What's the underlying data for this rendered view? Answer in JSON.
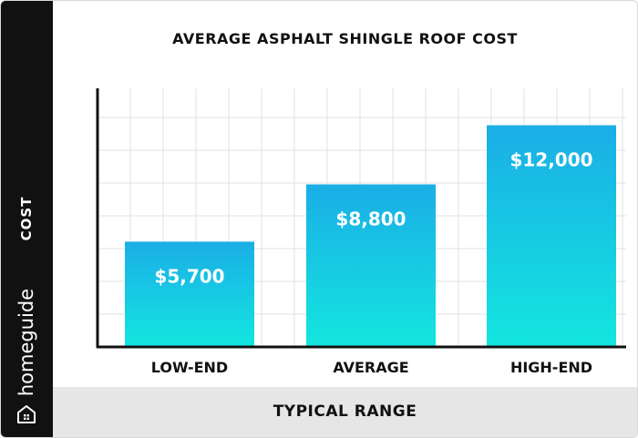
{
  "brand": {
    "name": "homeguide"
  },
  "colors": {
    "sidebar": "#111111",
    "footer": "#e6e6e6",
    "bar_top": "#1aaee6",
    "bar_bottom": "#14e6df",
    "grid": "#e2e2e2",
    "axis": "#111111"
  },
  "chart_data": {
    "type": "bar",
    "title": "AVERAGE ASPHALT SHINGLE ROOF COST",
    "xlabel": "TYPICAL RANGE",
    "ylabel": "COST",
    "categories": [
      "LOW-END",
      "AVERAGE",
      "HIGH-END"
    ],
    "values": [
      5700,
      8800,
      12000
    ],
    "data_labels": [
      "$5,700",
      "$8,800",
      "$12,000"
    ],
    "ylim": [
      0,
      14000
    ],
    "grid": true,
    "legend": "none"
  }
}
